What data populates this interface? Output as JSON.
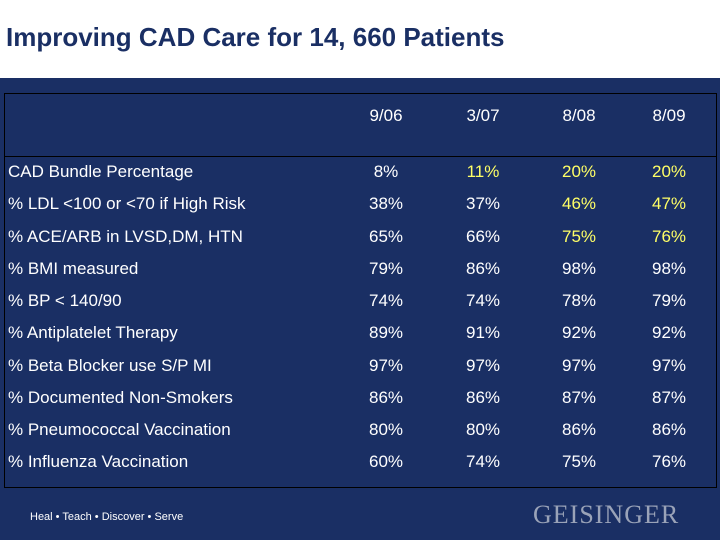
{
  "slide": {
    "title": "Improving CAD Care for 14, 660 Patients",
    "footer_tagline": "Heal • Teach • Discover • Serve",
    "brand": "GEISINGER"
  },
  "colors": {
    "background": "#1a2f64",
    "title_text": "#1a2f64",
    "cell_text": "#ffffff",
    "highlight_text": "#ffff66"
  },
  "table": {
    "columns": [
      "9/06",
      "3/07",
      "8/08",
      "8/09"
    ],
    "rows": [
      {
        "label": "CAD Bundle Percentage",
        "values": [
          "8%",
          "11%",
          "20%",
          "20%"
        ],
        "highlight": [
          false,
          true,
          true,
          true
        ]
      },
      {
        "label": "% LDL <100 or <70 if High Risk",
        "values": [
          "38%",
          "37%",
          "46%",
          "47%"
        ],
        "highlight": [
          false,
          false,
          true,
          true
        ]
      },
      {
        "label": "% ACE/ARB in LVSD,DM, HTN",
        "values": [
          "65%",
          "66%",
          "75%",
          "76%"
        ],
        "highlight": [
          false,
          false,
          true,
          true
        ]
      },
      {
        "label": "% BMI measured",
        "values": [
          "79%",
          "86%",
          "98%",
          "98%"
        ],
        "highlight": [
          false,
          false,
          false,
          false
        ]
      },
      {
        "label": "% BP < 140/90",
        "values": [
          "74%",
          "74%",
          "78%",
          "79%"
        ],
        "highlight": [
          false,
          false,
          false,
          false
        ]
      },
      {
        "label": "% Antiplatelet Therapy",
        "values": [
          "89%",
          "91%",
          "92%",
          "92%"
        ],
        "highlight": [
          false,
          false,
          false,
          false
        ]
      },
      {
        "label": "% Beta Blocker use S/P MI",
        "values": [
          "97%",
          "97%",
          "97%",
          "97%"
        ],
        "highlight": [
          false,
          false,
          false,
          false
        ]
      },
      {
        "label": "% Documented Non-Smokers",
        "values": [
          "86%",
          "86%",
          "87%",
          "87%"
        ],
        "highlight": [
          false,
          false,
          false,
          false
        ]
      },
      {
        "label": "% Pneumococcal Vaccination",
        "values": [
          "80%",
          "80%",
          "86%",
          "86%"
        ],
        "highlight": [
          false,
          false,
          false,
          false
        ]
      },
      {
        "label": "% Influenza Vaccination",
        "values": [
          "60%",
          "74%",
          "75%",
          "76%"
        ],
        "highlight": [
          false,
          false,
          false,
          false
        ]
      }
    ]
  }
}
